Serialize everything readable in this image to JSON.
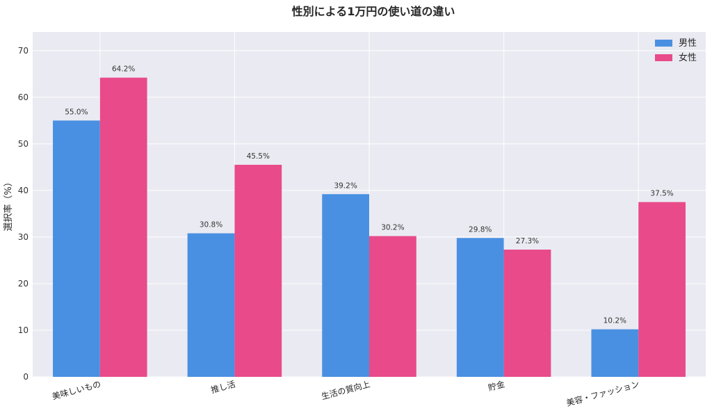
{
  "chart_data": {
    "type": "bar",
    "title": "性別による1万円の使い道の違い",
    "xlabel": "",
    "ylabel": "選択率（%）",
    "categories": [
      "美味しいもの",
      "推し活",
      "生活の質向上",
      "貯金",
      "美容・ファッション"
    ],
    "series": [
      {
        "name": "男性",
        "values": [
          55.0,
          30.8,
          39.2,
          29.8,
          10.2
        ],
        "labels": [
          "55.0%",
          "30.8%",
          "39.2%",
          "29.8%",
          "10.2%"
        ],
        "color": "#4A90E2"
      },
      {
        "name": "女性",
        "values": [
          64.2,
          45.5,
          30.2,
          27.3,
          37.5
        ],
        "labels": [
          "64.2%",
          "45.5%",
          "30.2%",
          "27.3%",
          "37.5%"
        ],
        "color": "#E84A8A"
      }
    ],
    "ylim": [
      0,
      74
    ],
    "yticks": [
      0,
      10,
      20,
      30,
      40,
      50,
      60,
      70
    ],
    "grid": true,
    "legend": "top-right",
    "background": "#EAEAF2"
  }
}
